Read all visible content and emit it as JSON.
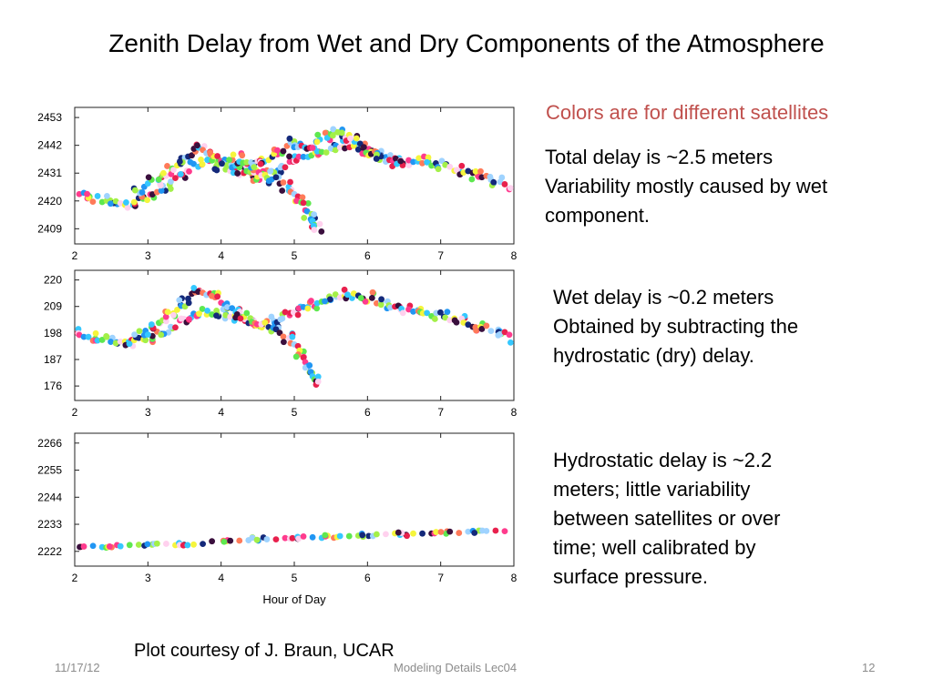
{
  "slide": {
    "title": "Zenith Delay from Wet and Dry Components of the Atmosphere",
    "colors_note": "Colors are for different satellites",
    "total_note": [
      "Total delay is ~2.5 meters",
      "Variability mostly caused by wet",
      "component."
    ],
    "wet_note": [
      "Wet delay is ~0.2 meters",
      "Obtained by subtracting the",
      "hydrostatic (dry) delay."
    ],
    "hydro_note": [
      "Hydrostatic delay is ~2.2",
      "meters; little variability",
      "between satellites or over",
      "time; well calibrated by",
      "surface pressure."
    ],
    "credit": "Plot courtesy of J. Braun, UCAR",
    "footer": {
      "date": "11/17/12",
      "center": "Modeling Details Lec04",
      "page": "12"
    }
  },
  "colors": {
    "satellites": [
      "#e8204d",
      "#ff3b8d",
      "#2196f3",
      "#35c8ff",
      "#5ee84f",
      "#a3f048",
      "#ffd1ee",
      "#f5f53c",
      "#14297a",
      "#3a0f3d",
      "#ff7a59",
      "#9fd3ff"
    ]
  },
  "chart_data": [
    {
      "type": "scatter",
      "title": "",
      "xlabel": "",
      "ylabel": "",
      "xlim": [
        2,
        8
      ],
      "ylim": [
        2403,
        2457
      ],
      "x_ticks": [
        2,
        3,
        4,
        5,
        6,
        7,
        8
      ],
      "y_ticks": [
        2409,
        2420,
        2431,
        2442,
        2453
      ],
      "grid": false,
      "series": [
        {
          "x": [
            2.0,
            2.25,
            2.5,
            2.75,
            3.0,
            3.25,
            3.5,
            3.75,
            4.0,
            4.25,
            4.5,
            4.75,
            5.0,
            5.25,
            5.5,
            5.75,
            6.0,
            6.25,
            6.5,
            6.75,
            7.0,
            7.25,
            7.5,
            7.75,
            8.0
          ],
          "y": [
            2424,
            2421,
            2420,
            2419,
            2422,
            2425,
            2431,
            2436,
            2434,
            2432,
            2430,
            2433,
            2436,
            2438,
            2441,
            2442,
            2441,
            2438,
            2436,
            2436,
            2434,
            2432,
            2430,
            2428,
            2425
          ]
        },
        {
          "x": [
            2.9,
            3.1,
            3.3,
            3.5,
            3.7,
            3.9,
            4.1,
            4.3,
            4.5,
            4.7,
            4.9,
            5.1,
            5.2,
            5.3
          ],
          "y": [
            2425,
            2428,
            2432,
            2437,
            2441,
            2438,
            2435,
            2433,
            2431,
            2429,
            2426,
            2421,
            2414,
            2409
          ]
        },
        {
          "x": [
            4.2,
            4.4,
            4.6,
            4.8,
            5.0,
            5.2,
            5.4,
            5.6,
            5.8,
            6.0,
            6.2,
            6.4
          ],
          "y": [
            2437,
            2434,
            2436,
            2440,
            2443,
            2440,
            2445,
            2447,
            2445,
            2440,
            2437,
            2435
          ]
        }
      ]
    },
    {
      "type": "scatter",
      "title": "",
      "xlabel": "",
      "ylabel": "",
      "xlim": [
        2,
        8
      ],
      "ylim": [
        170,
        224
      ],
      "x_ticks": [
        2,
        3,
        4,
        5,
        6,
        7,
        8
      ],
      "y_ticks": [
        176,
        187,
        198,
        209,
        220
      ],
      "grid": false,
      "series": [
        {
          "x": [
            2.0,
            2.25,
            2.5,
            2.75,
            3.0,
            3.25,
            3.5,
            3.75,
            4.0,
            4.25,
            4.5,
            4.75,
            5.0,
            5.25,
            5.5,
            5.75,
            6.0,
            6.25,
            6.5,
            6.75,
            7.0,
            7.25,
            7.5,
            7.75,
            8.0
          ],
          "y": [
            198,
            196,
            195,
            194,
            196,
            199,
            204,
            207,
            206,
            204,
            202,
            204,
            207,
            210,
            213,
            214,
            213,
            210,
            208,
            207,
            205,
            203,
            201,
            199,
            196
          ]
        },
        {
          "x": [
            2.9,
            3.1,
            3.3,
            3.5,
            3.7,
            3.9,
            4.1,
            4.3,
            4.5,
            4.7,
            4.9,
            5.1,
            5.2,
            5.3
          ],
          "y": [
            197,
            200,
            205,
            211,
            216,
            213,
            209,
            206,
            203,
            200,
            196,
            190,
            183,
            178
          ]
        }
      ]
    },
    {
      "type": "scatter",
      "title": "",
      "xlabel": "Hour of Day",
      "ylabel": "",
      "xlim": [
        2,
        8
      ],
      "ylim": [
        2216,
        2270
      ],
      "x_ticks": [
        2,
        3,
        4,
        5,
        6,
        7,
        8
      ],
      "y_ticks": [
        2222,
        2233,
        2244,
        2255,
        2266
      ],
      "grid": false,
      "series": [
        {
          "x": [
            2.0,
            2.5,
            3.0,
            3.5,
            4.0,
            4.5,
            5.0,
            5.5,
            6.0,
            6.5,
            7.0,
            7.5,
            8.0
          ],
          "y": [
            2224,
            2224,
            2225,
            2225,
            2226,
            2227,
            2227.5,
            2228,
            2228.5,
            2229,
            2229.5,
            2230,
            2230
          ]
        }
      ]
    }
  ]
}
